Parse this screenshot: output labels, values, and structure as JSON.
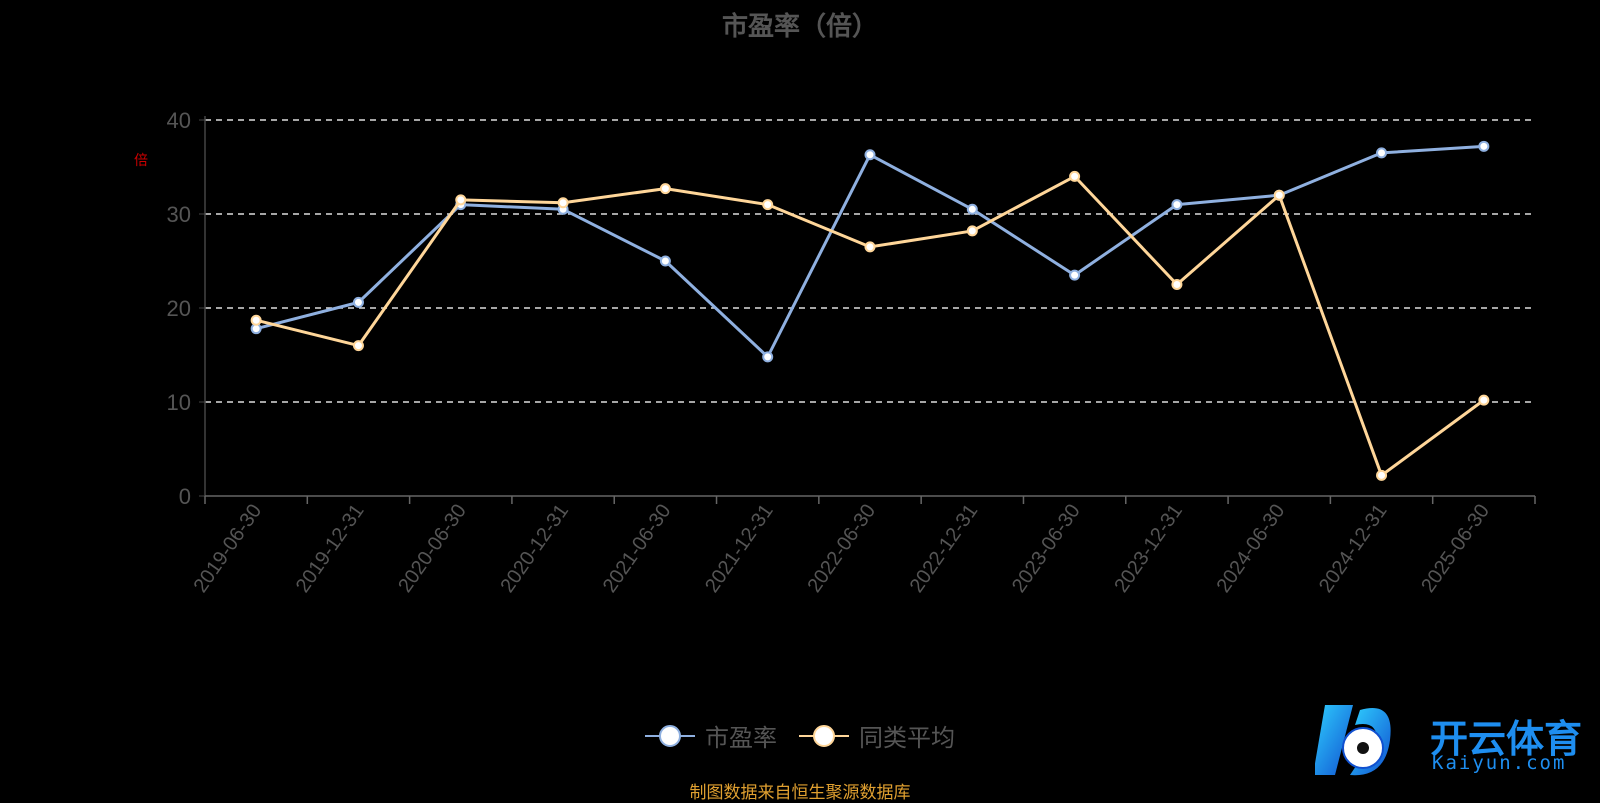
{
  "chart_data": {
    "type": "line",
    "title": "市盈率（倍）",
    "unit_mark": "倍",
    "x": [
      "2019-06-30",
      "2019-12-31",
      "2020-06-30",
      "2020-12-31",
      "2021-06-30",
      "2021-12-31",
      "2022-06-30",
      "2022-12-31",
      "2023-06-30",
      "2023-12-31",
      "2024-06-30",
      "2024-12-31",
      "2025-06-30"
    ],
    "series": [
      {
        "name": "市盈率",
        "color": "#8fb0e0",
        "values": [
          17.8,
          20.6,
          31.0,
          30.5,
          25.0,
          14.8,
          36.3,
          30.5,
          23.5,
          31.0,
          32.0,
          36.5,
          37.2
        ]
      },
      {
        "name": "同类平均",
        "color": "#ffd699",
        "values": [
          18.7,
          16.0,
          31.5,
          31.2,
          32.7,
          31.0,
          26.5,
          28.2,
          34.0,
          22.5,
          32.0,
          2.2,
          10.2
        ]
      }
    ],
    "ylim": [
      0,
      40
    ],
    "yticks": [
      0,
      10,
      20,
      30,
      40
    ],
    "grid": true,
    "legend_position": "bottom-center"
  },
  "footer": {
    "source": "制图数据来自恒生聚源数据库"
  },
  "watermark": {
    "cn": "开云体育",
    "en": "Kaiyun.com"
  }
}
